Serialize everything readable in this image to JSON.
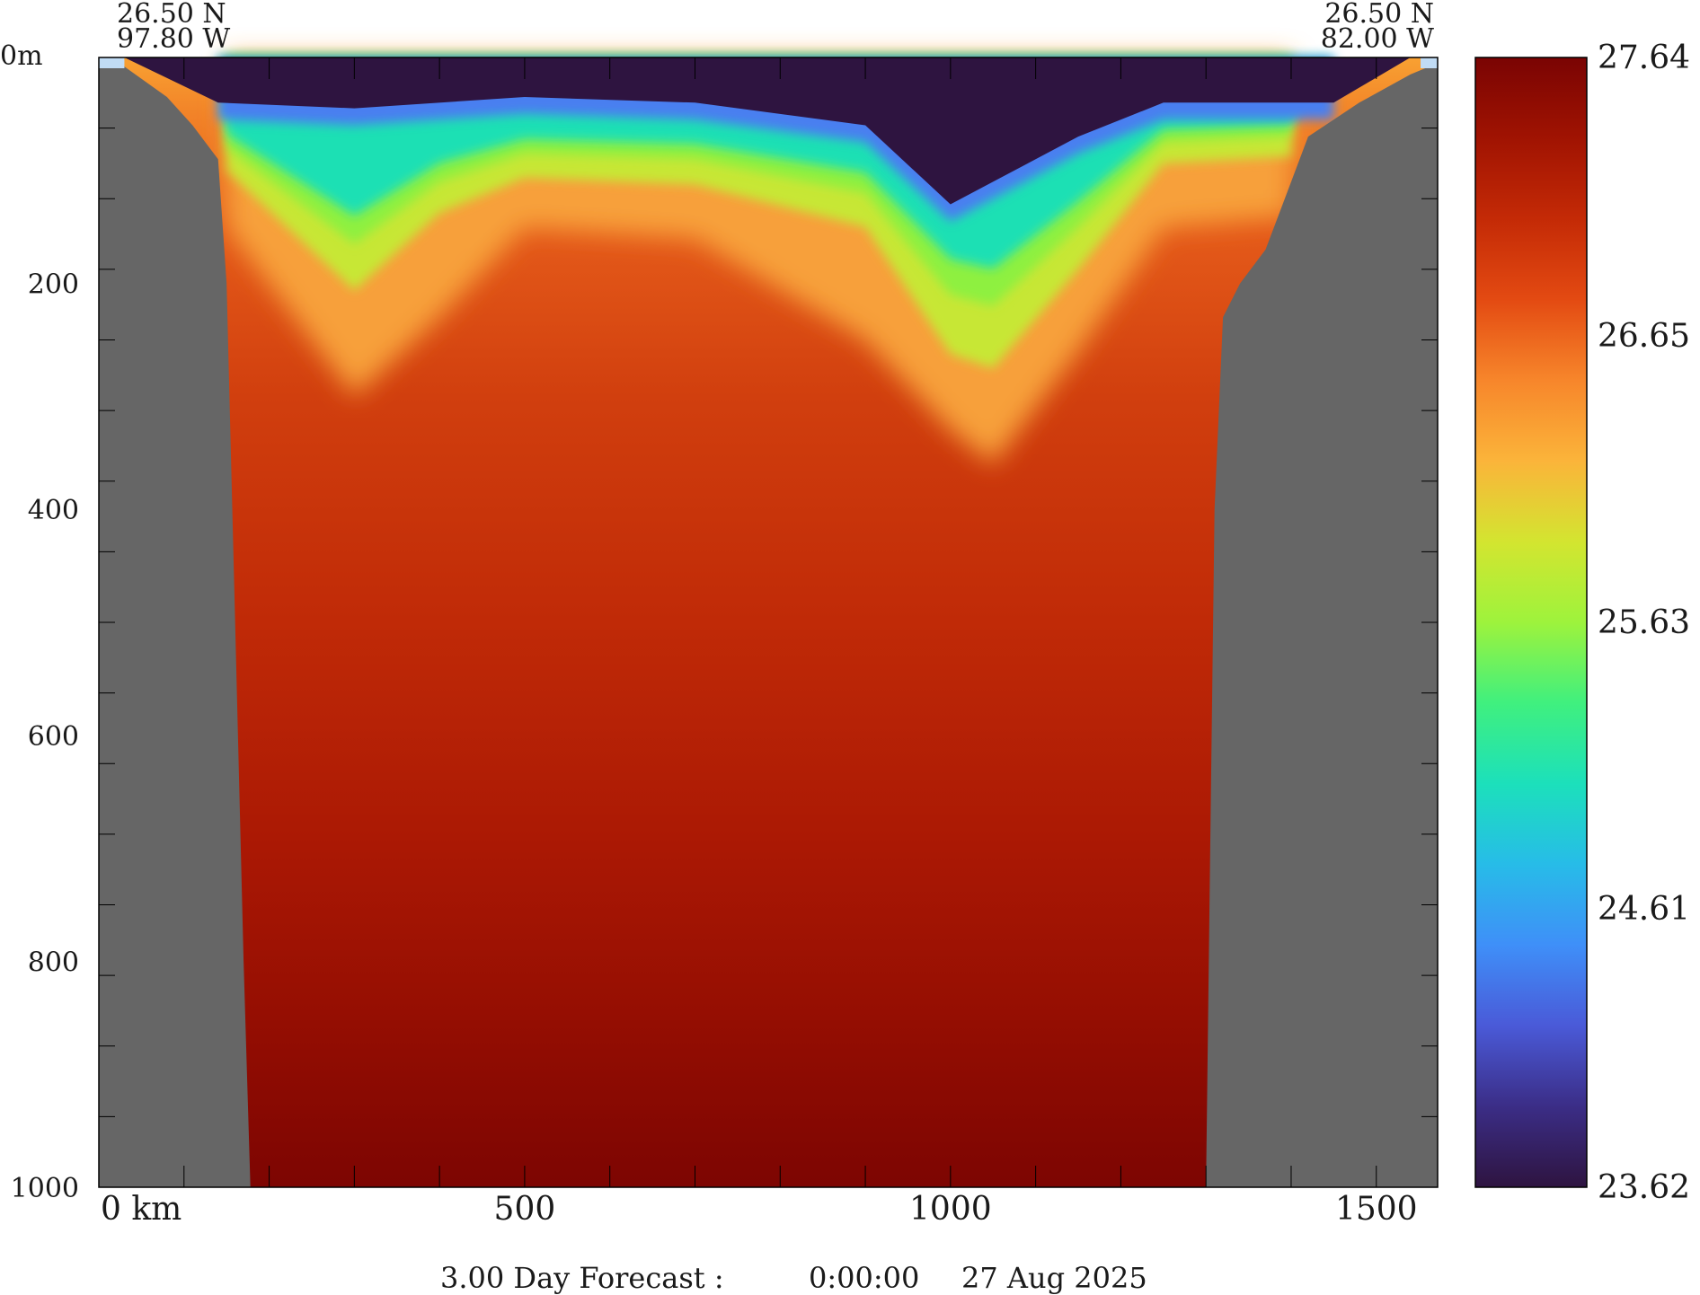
{
  "chart_data": {
    "type": "heatmap",
    "title": "",
    "start_point": {
      "lat": "26.50 N",
      "lon": "97.80 W"
    },
    "end_point": {
      "lat": "26.50 N",
      "lon": "82.00 W"
    },
    "x_axis": {
      "label_unit": "km",
      "range": [
        0,
        1572
      ],
      "ticks": [
        0,
        500,
        1000,
        1500
      ],
      "tick_labels": [
        "0 km",
        "500",
        "1000",
        "1500"
      ]
    },
    "y_axis": {
      "unit": "m",
      "range": [
        0,
        1000
      ],
      "inverted": true,
      "ticks": [
        0,
        200,
        400,
        600,
        800,
        1000
      ],
      "tick_labels": [
        "0m",
        "200",
        "400",
        "600",
        "800",
        "1000"
      ]
    },
    "colorbar": {
      "min": 23.62,
      "max": 27.64,
      "labels": [
        "27.64",
        "26.65",
        "25.63",
        "24.61",
        "23.62"
      ],
      "colormap": [
        "#2e1440",
        "#3b2d86",
        "#4a5ad8",
        "#3f8ff8",
        "#27bce8",
        "#1ce0bb",
        "#40f07e",
        "#9ef33c",
        "#d3e530",
        "#fbb43a",
        "#f7862b",
        "#e34a12",
        "#c42a06",
        "#a01302",
        "#7a0403"
      ]
    },
    "topography": {
      "description_left": "land mask from 0 to ~140 km",
      "left_bottom_depth": [
        [
          0,
          0
        ],
        [
          30,
          8
        ],
        [
          80,
          35
        ],
        [
          110,
          60
        ],
        [
          140,
          90
        ],
        [
          150,
          200
        ],
        [
          160,
          500
        ],
        [
          170,
          800
        ],
        [
          178,
          1000
        ]
      ],
      "right_bottom_depth": [
        [
          1300,
          1000
        ],
        [
          1305,
          700
        ],
        [
          1310,
          400
        ],
        [
          1320,
          230
        ],
        [
          1340,
          200
        ],
        [
          1370,
          170
        ],
        [
          1400,
          110
        ],
        [
          1420,
          70
        ],
        [
          1480,
          40
        ],
        [
          1540,
          15
        ],
        [
          1572,
          5
        ]
      ]
    },
    "mixed_layer": {
      "surface_layer_bottom_m": [
        [
          140,
          40
        ],
        [
          300,
          45
        ],
        [
          500,
          35
        ],
        [
          700,
          40
        ],
        [
          900,
          60
        ],
        [
          1000,
          130
        ],
        [
          1050,
          110
        ],
        [
          1150,
          70
        ],
        [
          1250,
          40
        ],
        [
          1450,
          40
        ]
      ],
      "isotherm_25_depth_m": [
        [
          150,
          80
        ],
        [
          300,
          165
        ],
        [
          400,
          110
        ],
        [
          500,
          85
        ],
        [
          700,
          90
        ],
        [
          900,
          120
        ],
        [
          1000,
          210
        ],
        [
          1050,
          220
        ],
        [
          1150,
          150
        ],
        [
          1250,
          75
        ],
        [
          1400,
          70
        ]
      ],
      "isotherm_26_5_depth_m": [
        [
          150,
          150
        ],
        [
          300,
          300
        ],
        [
          400,
          230
        ],
        [
          500,
          150
        ],
        [
          700,
          160
        ],
        [
          900,
          250
        ],
        [
          1000,
          330
        ],
        [
          1050,
          360
        ],
        [
          1150,
          260
        ],
        [
          1250,
          150
        ],
        [
          1400,
          140
        ]
      ]
    },
    "footer": {
      "forecast_label": "3.00 Day Forecast :",
      "time": "0:00:00",
      "date": "27 Aug 2025"
    }
  }
}
